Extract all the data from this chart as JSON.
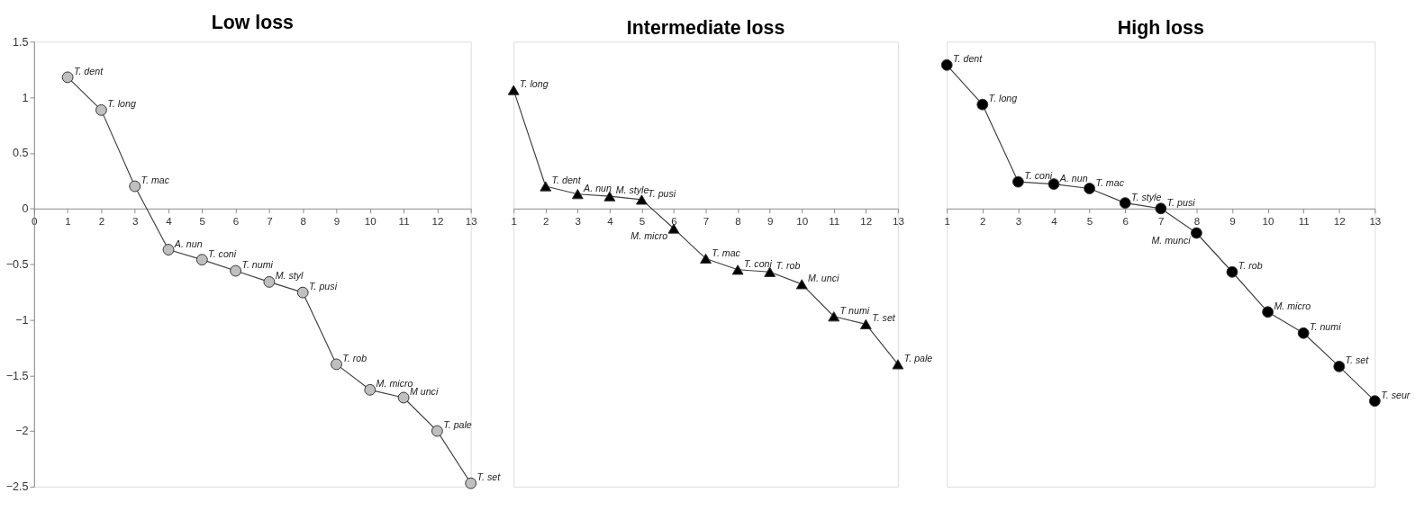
{
  "chart_data": [
    {
      "type": "line",
      "title": "Low loss",
      "x": [
        1,
        2,
        3,
        4,
        5,
        6,
        7,
        8,
        9,
        10,
        11,
        12,
        13
      ],
      "xlim": [
        0,
        13
      ],
      "xticks": [
        0,
        1,
        2,
        3,
        4,
        5,
        6,
        7,
        8,
        9,
        10,
        11,
        12,
        13
      ],
      "ylim": [
        -2.5,
        1.5
      ],
      "yticks": [
        1.5,
        1,
        0.5,
        0,
        -0.5,
        -1,
        -1.5,
        -2,
        -2.5
      ],
      "grid": false,
      "marker": "circle",
      "series": [
        {
          "color": "#bfbfbf",
          "values": [
            1.18,
            0.885,
            0.2,
            -0.37,
            -0.46,
            -0.56,
            -0.66,
            -0.755,
            -1.4,
            -1.63,
            -1.7,
            -2.0,
            -2.47
          ]
        }
      ],
      "annotations": [
        {
          "text": "T. dent",
          "x": 1,
          "y": 1.18
        },
        {
          "text": "T. long",
          "x": 2,
          "y": 0.885
        },
        {
          "text": "T. mac",
          "x": 3,
          "y": 0.2
        },
        {
          "text": "A. nun",
          "x": 4,
          "y": -0.37
        },
        {
          "text": "T. coni",
          "x": 5,
          "y": -0.46
        },
        {
          "text": "T. numi",
          "x": 6,
          "y": -0.56
        },
        {
          "text": "M. styl",
          "x": 7,
          "y": -0.66
        },
        {
          "text": "T. pusi",
          "x": 8,
          "y": -0.755
        },
        {
          "text": "T. rob",
          "x": 9,
          "y": -1.4
        },
        {
          "text": "M. micro",
          "x": 10,
          "y": -1.63
        },
        {
          "text": "M unci",
          "x": 11,
          "y": -1.7
        },
        {
          "text": "T. pale",
          "x": 12,
          "y": -2.0
        },
        {
          "text": "T. set",
          "x": 13,
          "y": -2.47
        }
      ]
    },
    {
      "type": "line",
      "title": "Intermediate loss",
      "x": [
        1,
        2,
        3,
        4,
        5,
        6,
        7,
        8,
        9,
        10,
        11,
        12,
        13
      ],
      "xlim": [
        1,
        13
      ],
      "xticks": [
        1,
        2,
        3,
        4,
        5,
        6,
        7,
        8,
        9,
        10,
        11,
        12,
        13
      ],
      "ylim": [
        -2.5,
        1.5
      ],
      "tick_labels": "x",
      "grid": false,
      "marker": "triangle",
      "series": [
        {
          "color": "#000000",
          "values": [
            1.065,
            0.2,
            0.13,
            0.11,
            0.08,
            -0.18,
            -0.45,
            -0.55,
            -0.57,
            -0.68,
            -0.97,
            -1.04,
            -1.4
          ]
        }
      ],
      "annotations": [
        {
          "text": "T. long",
          "x": 1,
          "y": 1.065
        },
        {
          "text": "T. dent",
          "x": 2,
          "y": 0.2
        },
        {
          "text": "A. nun",
          "x": 3,
          "y": 0.13
        },
        {
          "text": "M. style",
          "x": 4,
          "y": 0.11
        },
        {
          "text": "T. pusi",
          "x": 5,
          "y": 0.08
        },
        {
          "text": "M. micro",
          "x": 6,
          "y": -0.18
        },
        {
          "text": "T. mac",
          "x": 7,
          "y": -0.45
        },
        {
          "text": "T. coni",
          "x": 8,
          "y": -0.55
        },
        {
          "text": "T. rob",
          "x": 9,
          "y": -0.57
        },
        {
          "text": "M. unci",
          "x": 10,
          "y": -0.68
        },
        {
          "text": "T numi",
          "x": 11,
          "y": -0.97
        },
        {
          "text": "T. set",
          "x": 12,
          "y": -1.04
        },
        {
          "text": "T. pale",
          "x": 13,
          "y": -1.4
        }
      ]
    },
    {
      "type": "line",
      "title": "High loss",
      "x": [
        1,
        2,
        3,
        4,
        5,
        6,
        7,
        8,
        9,
        10,
        11,
        12,
        13
      ],
      "xlim": [
        1,
        13
      ],
      "xticks": [
        1,
        2,
        3,
        4,
        5,
        6,
        7,
        8,
        9,
        10,
        11,
        12,
        13
      ],
      "ylim": [
        -2.5,
        1.5
      ],
      "tick_labels": "x",
      "grid": false,
      "marker": "circle",
      "series": [
        {
          "color": "#000000",
          "values": [
            1.29,
            0.935,
            0.24,
            0.22,
            0.18,
            0.05,
            0.0,
            -0.22,
            -0.57,
            -0.93,
            -1.12,
            -1.42,
            -1.73
          ]
        }
      ],
      "annotations": [
        {
          "text": "T. dent",
          "x": 1,
          "y": 1.29
        },
        {
          "text": "T. long",
          "x": 2,
          "y": 0.935
        },
        {
          "text": "T. coni",
          "x": 3,
          "y": 0.24
        },
        {
          "text": "A. nun",
          "x": 4,
          "y": 0.22
        },
        {
          "text": "T. mac",
          "x": 5,
          "y": 0.18
        },
        {
          "text": "T. style",
          "x": 6,
          "y": 0.05
        },
        {
          "text": "T. pusi",
          "x": 7,
          "y": 0.0
        },
        {
          "text": "M. munci",
          "x": 8,
          "y": -0.22
        },
        {
          "text": "T. rob",
          "x": 9,
          "y": -0.57
        },
        {
          "text": "M. micro",
          "x": 10,
          "y": -0.93
        },
        {
          "text": "T. numi",
          "x": 11,
          "y": -1.12
        },
        {
          "text": "T. set",
          "x": 12,
          "y": -1.42
        },
        {
          "text": "T. seur",
          "x": 13,
          "y": -1.73
        }
      ]
    }
  ]
}
